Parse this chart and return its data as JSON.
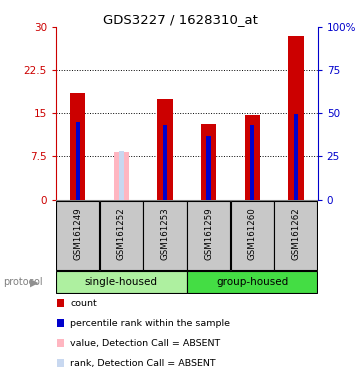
{
  "title": "GDS3227 / 1628310_at",
  "samples": [
    "GSM161249",
    "GSM161252",
    "GSM161253",
    "GSM161259",
    "GSM161260",
    "GSM161262"
  ],
  "count_values": [
    18.5,
    0,
    17.5,
    13.2,
    14.7,
    28.5
  ],
  "percentile_values": [
    13.5,
    0,
    13.0,
    11.0,
    13.0,
    14.8
  ],
  "absent_value_bar": [
    0,
    8.2,
    0,
    0,
    0,
    0
  ],
  "absent_rank_bar": [
    0,
    8.5,
    0,
    0,
    0,
    0
  ],
  "absent_mask": [
    false,
    true,
    false,
    false,
    false,
    false
  ],
  "groups": [
    {
      "name": "single-housed",
      "indices": [
        0,
        1,
        2
      ],
      "color": "#aef0a0"
    },
    {
      "name": "group-housed",
      "indices": [
        3,
        4,
        5
      ],
      "color": "#44dd44"
    }
  ],
  "ylim_left": [
    0,
    30
  ],
  "ylim_right": [
    0,
    100
  ],
  "yticks_left": [
    0,
    7.5,
    15,
    22.5,
    30
  ],
  "yticks_right": [
    0,
    25,
    50,
    75,
    100
  ],
  "ytick_labels_left": [
    "0",
    "7.5",
    "15",
    "22.5",
    "30"
  ],
  "ytick_labels_right": [
    "0",
    "25",
    "50",
    "75",
    "100%"
  ],
  "left_axis_color": "#CC0000",
  "right_axis_color": "#0000CC",
  "bar_width": 0.35,
  "count_color": "#CC0000",
  "percentile_color": "#0000CC",
  "absent_value_color": "#FFB6C1",
  "absent_rank_color": "#C8D8F0",
  "bg_color": "#FFFFFF",
  "tick_label_box_color": "#C8C8C8",
  "legend_items": [
    {
      "color": "#CC0000",
      "label": "count"
    },
    {
      "color": "#0000CC",
      "label": "percentile rank within the sample"
    },
    {
      "color": "#FFB6C1",
      "label": "value, Detection Call = ABSENT"
    },
    {
      "color": "#C8D8F0",
      "label": "rank, Detection Call = ABSENT"
    }
  ]
}
